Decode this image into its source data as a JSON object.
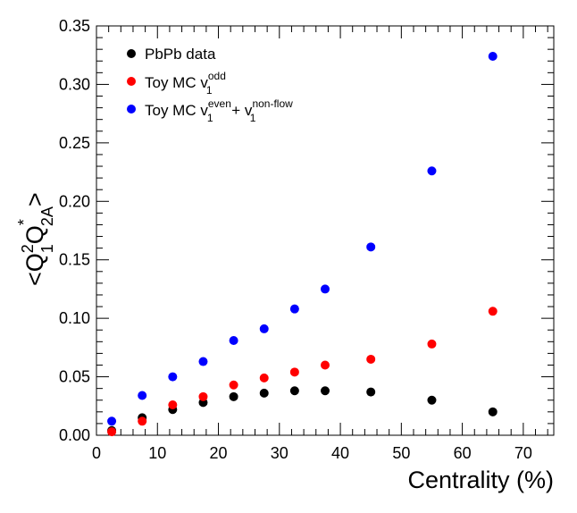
{
  "chart_data": {
    "type": "scatter",
    "xlabel": "Centrality (%)",
    "ylabel": {
      "main": "<Q",
      "sup1": "2",
      "sub1": "1",
      "mid": "Q",
      "sup2": "*",
      "sub2": "2A",
      "end": ">"
    },
    "xlim": [
      0,
      75
    ],
    "ylim": [
      0,
      0.35
    ],
    "x_ticks": [
      "0",
      "10",
      "20",
      "30",
      "40",
      "50",
      "60",
      "70"
    ],
    "y_ticks": [
      "0.00",
      "0.05",
      "0.10",
      "0.15",
      "0.20",
      "0.25",
      "0.30",
      "0.35"
    ],
    "legend_position": "top-left",
    "series": [
      {
        "name": "PbPb data",
        "color": "#000000",
        "x": [
          2.5,
          7.5,
          12.5,
          17.5,
          22.5,
          27.5,
          32.5,
          37.5,
          45,
          55,
          65
        ],
        "y": [
          0.004,
          0.015,
          0.022,
          0.028,
          0.033,
          0.036,
          0.038,
          0.038,
          0.037,
          0.03,
          0.02
        ]
      },
      {
        "name": "Toy MC v1odd",
        "color": "#ff0000",
        "x": [
          2.5,
          7.5,
          12.5,
          17.5,
          22.5,
          27.5,
          32.5,
          37.5,
          45,
          55,
          65
        ],
        "y": [
          0.003,
          0.012,
          0.026,
          0.033,
          0.043,
          0.049,
          0.054,
          0.06,
          0.065,
          0.078,
          0.106
        ]
      },
      {
        "name": "Toy MC v1even + v1non-flow",
        "color": "#0000ff",
        "x": [
          2.5,
          7.5,
          12.5,
          17.5,
          22.5,
          27.5,
          32.5,
          37.5,
          45,
          55,
          65
        ],
        "y": [
          0.012,
          0.034,
          0.05,
          0.063,
          0.081,
          0.091,
          0.108,
          0.125,
          0.161,
          0.226,
          0.324
        ]
      }
    ],
    "legend": [
      {
        "base": "PbPb data",
        "color": "#000000"
      },
      {
        "base": "Toy MC v",
        "sup": "odd",
        "sub": "1",
        "color": "#ff0000"
      },
      {
        "base": "Toy MC v",
        "sup": "even",
        "sub": "1",
        "tail": " + v",
        "sup2": "non-flow",
        "sub2": "1",
        "color": "#0000ff"
      }
    ]
  }
}
